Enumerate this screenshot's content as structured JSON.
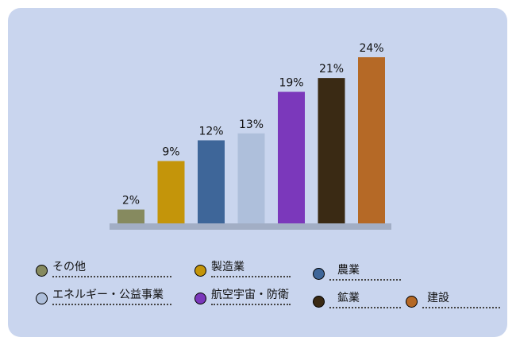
{
  "chart_data": {
    "type": "bar",
    "categories": [
      "その他",
      "製造業",
      "農業",
      "エネルギー・公益事業",
      "航空宇宙・防衛",
      "鉱業",
      "建設"
    ],
    "values": [
      2,
      9,
      12,
      13,
      19,
      21,
      24
    ],
    "value_labels": [
      "2%",
      "9%",
      "12%",
      "13%",
      "19%",
      "21%",
      "24%"
    ],
    "colors": [
      "#868a5f",
      "#c4950a",
      "#3e6699",
      "#aebfdb",
      "#7b38bb",
      "#3a2a14",
      "#b56926"
    ],
    "ylim": [
      0,
      24
    ],
    "legend_position": "bottom",
    "grid": false
  },
  "colors": {
    "panel_background": "#c9d5ee",
    "baseline": "#a2aec5"
  }
}
